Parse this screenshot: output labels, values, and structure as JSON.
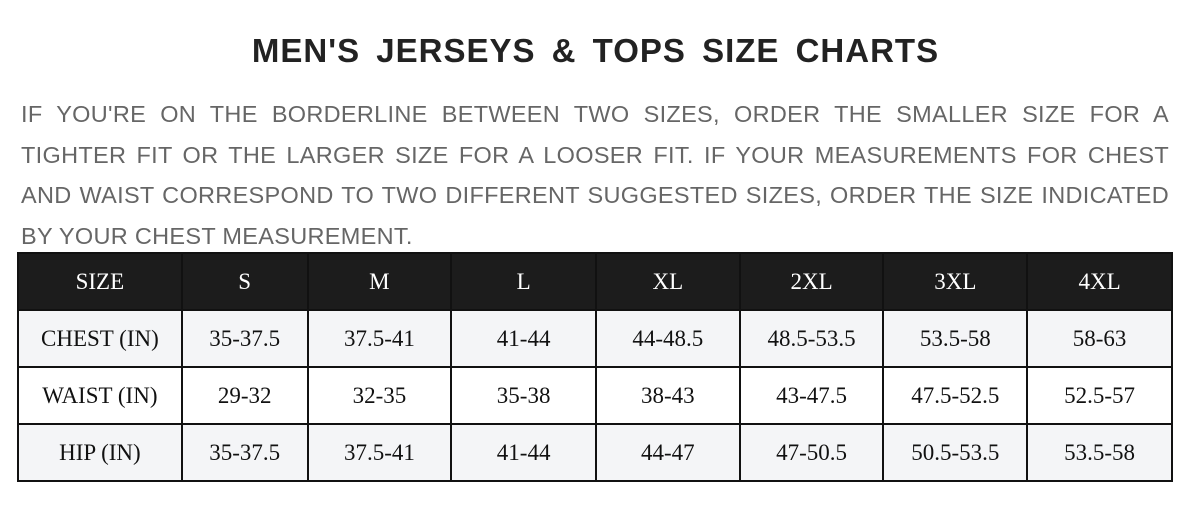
{
  "title": "MEN'S JERSEYS & TOPS SIZE CHARTS",
  "description": "IF YOU'RE ON THE BORDERLINE BETWEEN TWO SIZES, ORDER THE SMALLER SIZE FOR A TIGHTER FIT OR THE LARGER SIZE FOR A LOOSER FIT. IF YOUR MEASUREMENTS FOR CHEST AND WAIST CORRESPOND TO TWO DIFFERENT SUGGESTED SIZES, ORDER THE SIZE INDICATED BY YOUR CHEST MEASUREMENT.",
  "table": {
    "header": [
      "SIZE",
      "S",
      "M",
      "L",
      "XL",
      "2XL",
      "3XL",
      "4XL"
    ],
    "rows": [
      [
        "CHEST (IN)",
        "35-37.5",
        "37.5-41",
        "41-44",
        "44-48.5",
        "48.5-53.5",
        "53.5-58",
        "58-63"
      ],
      [
        "WAIST (IN)",
        "29-32",
        "32-35",
        "35-38",
        "38-43",
        "43-47.5",
        "47.5-52.5",
        "52.5-57"
      ],
      [
        "HIP (IN)",
        "35-37.5",
        "37.5-41",
        "41-44",
        "44-47",
        "47-50.5",
        "50.5-53.5",
        "53.5-58"
      ]
    ]
  },
  "colors": {
    "header_bg": "#1c1c1c",
    "alt_row_bg": "#f4f5f7",
    "text": "#111111",
    "paragraph": "#666666"
  }
}
